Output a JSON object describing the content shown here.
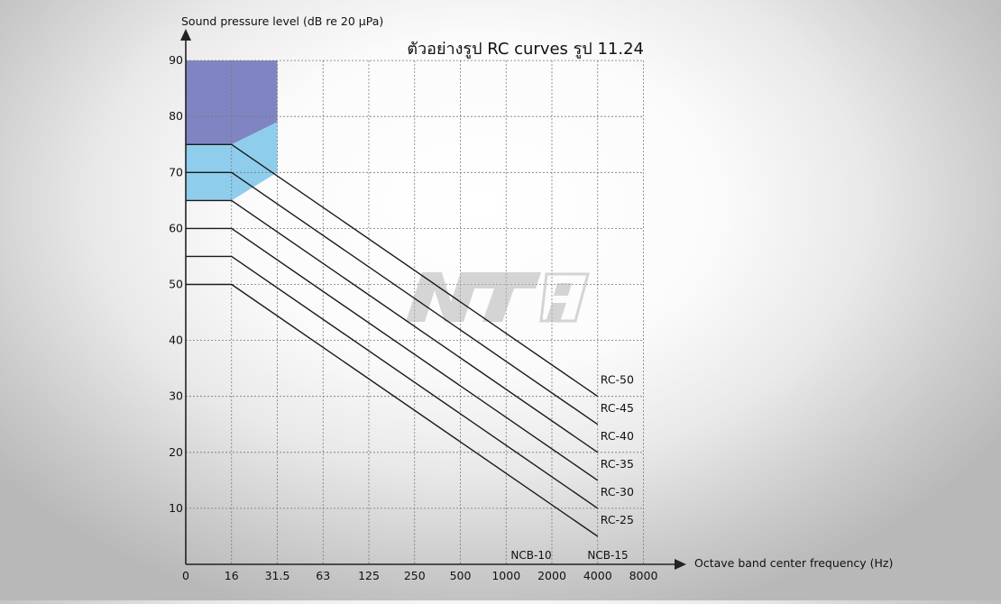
{
  "chart_data": {
    "type": "line",
    "title": "ตัวอย่างรูป RC curves รูป 11.24",
    "ylabel": "Sound pressure level (dB re 20 µPa)",
    "xlabel": "Octave band center frequency (Hz)",
    "categories": [
      "0",
      "16",
      "31.5",
      "63",
      "125",
      "250",
      "500",
      "1000",
      "2000",
      "4000",
      "8000"
    ],
    "y_ticks": [
      "10",
      "20",
      "30",
      "40",
      "50",
      "60",
      "70",
      "80",
      "90"
    ],
    "ylim": [
      0,
      90
    ],
    "grid": true,
    "series": [
      {
        "name": "RC-25",
        "x": [
          "0",
          "16",
          "4000"
        ],
        "values": [
          50,
          50,
          5
        ]
      },
      {
        "name": "RC-30",
        "x": [
          "0",
          "16",
          "4000"
        ],
        "values": [
          55,
          55,
          10
        ]
      },
      {
        "name": "RC-35",
        "x": [
          "0",
          "16",
          "4000"
        ],
        "values": [
          60,
          60,
          15
        ]
      },
      {
        "name": "RC-40",
        "x": [
          "0",
          "16",
          "4000"
        ],
        "values": [
          65,
          65,
          20
        ]
      },
      {
        "name": "RC-45",
        "x": [
          "0",
          "16",
          "4000"
        ],
        "values": [
          70,
          70,
          25
        ]
      },
      {
        "name": "RC-50",
        "x": [
          "0",
          "16",
          "4000"
        ],
        "values": [
          75,
          75,
          30
        ]
      }
    ],
    "regions": [
      {
        "name": "rumble-region-dark",
        "color": "#7f85c2",
        "points": [
          [
            "0",
            90
          ],
          [
            "31.5",
            90
          ],
          [
            "31.5",
            79
          ],
          [
            "16",
            75
          ],
          [
            "0",
            75
          ]
        ]
      },
      {
        "name": "rumble-region-light",
        "color": "#8fcdec",
        "points": [
          [
            "0",
            75
          ],
          [
            "16",
            75
          ],
          [
            "31.5",
            79
          ],
          [
            "31.5",
            70
          ],
          [
            "16",
            65
          ],
          [
            "0",
            65
          ]
        ]
      }
    ],
    "annotations": [
      "NCB-10",
      "NCB-15"
    ],
    "watermark": "NTi"
  }
}
